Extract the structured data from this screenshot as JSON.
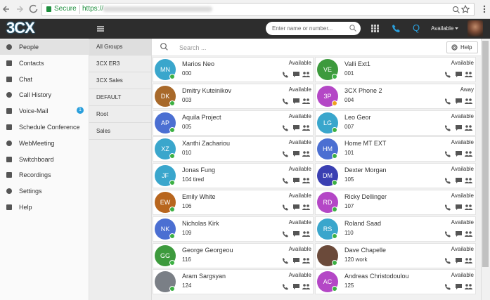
{
  "browser": {
    "secure": "Secure",
    "url_scheme": "https://"
  },
  "header": {
    "logo": "3CX",
    "search_placeholder": "Enter name or number...",
    "queue": "Q",
    "status": "Available"
  },
  "sidebar": {
    "items": [
      {
        "label": "People"
      },
      {
        "label": "Contacts"
      },
      {
        "label": "Chat"
      },
      {
        "label": "Call History"
      },
      {
        "label": "Voice-Mail",
        "badge": "1"
      },
      {
        "label": "Schedule Conference"
      },
      {
        "label": "WebMeeting"
      },
      {
        "label": "Switchboard"
      },
      {
        "label": "Recordings"
      },
      {
        "label": "Settings"
      },
      {
        "label": "Help"
      }
    ]
  },
  "groups": [
    "All Groups",
    "3CX ER3",
    "3CX Sales",
    "DEFAULT",
    "Root",
    "Sales"
  ],
  "main": {
    "search_placeholder": "Search ...",
    "help": "Help",
    "contacts": [
      {
        "initials": "MN",
        "name": "Marios Neo",
        "extension": "000",
        "status": "Available",
        "color": "#3aa6cc",
        "dot": "#3cb043"
      },
      {
        "initials": "VE",
        "name": "Valli Ext1",
        "extension": "001",
        "status": "Available",
        "color": "#3d9a3d",
        "dot": "#3cb043"
      },
      {
        "initials": "DK",
        "name": "Dmitry Kuteinikov",
        "extension": "003",
        "status": "Available",
        "color": "#a8692a",
        "dot": "#3cb043"
      },
      {
        "initials": "3P",
        "name": "3CX Phone 2",
        "extension": "004",
        "status": "Away",
        "color": "#b447c6",
        "dot": "#f0a020"
      },
      {
        "initials": "AP",
        "name": "Aquila Project",
        "extension": "005",
        "status": "Available",
        "color": "#4b6fd2",
        "dot": "#3cb043"
      },
      {
        "initials": "LG",
        "name": "Leo Geor",
        "extension": "007",
        "status": "Available",
        "color": "#3aa6cc",
        "dot": "#3cb043"
      },
      {
        "initials": "XZ",
        "name": "Xanthi Zachariou",
        "extension": "010",
        "status": "Available",
        "color": "#3aa6cc",
        "dot": "#3cb043"
      },
      {
        "initials": "HM",
        "name": "Home MT EXT",
        "extension": "101",
        "status": "Available",
        "color": "#4b6fd2",
        "dot": "#3cb043"
      },
      {
        "initials": "JF",
        "name": "Jonas Fung",
        "extension": "104 tired",
        "status": "Available",
        "color": "#3aa6cc",
        "dot": "#3cb043"
      },
      {
        "initials": "DM",
        "name": "Dexter Morgan",
        "extension": "105",
        "status": "Available",
        "color": "#3a3fb2",
        "dot": "#3cb043"
      },
      {
        "initials": "EW",
        "name": "Emily White",
        "extension": "106",
        "status": "Available",
        "color": "#b8661e",
        "dot": "#3cb043"
      },
      {
        "initials": "RD",
        "name": "Ricky Dellinger",
        "extension": "107",
        "status": "Available",
        "color": "#b447c6",
        "dot": "#3cb043"
      },
      {
        "initials": "NK",
        "name": "Nicholas Kirk",
        "extension": "109",
        "status": "Available",
        "color": "#4b6fd2",
        "dot": "#3cb043"
      },
      {
        "initials": "RS",
        "name": "Roland Saad",
        "extension": "110",
        "status": "Available",
        "color": "#3aa6cc",
        "dot": "#3cb043"
      },
      {
        "initials": "GG",
        "name": "George Georgeou",
        "extension": "116",
        "status": "Available",
        "color": "#3d9a3d",
        "dot": "#3cb043"
      },
      {
        "name": "Dave Chapelle",
        "extension": "120 work",
        "status": "Available",
        "color": "#6b4a3a",
        "dot": "#3cb043"
      },
      {
        "name": "Aram Sargsyan",
        "extension": "124",
        "status": "Available",
        "color": "#7a7f86",
        "dot": "#3cb043"
      },
      {
        "initials": "AC",
        "name": "Andreas Christodoulou",
        "extension": "125",
        "status": "Available",
        "color": "#b447c6",
        "dot": "#3cb043"
      }
    ]
  }
}
